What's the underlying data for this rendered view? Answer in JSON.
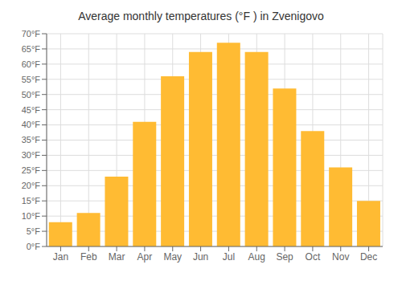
{
  "chart_data": {
    "type": "bar",
    "title": "Average monthly temperatures (°F ) in Zvenigovo",
    "categories": [
      "Jan",
      "Feb",
      "Mar",
      "Apr",
      "May",
      "Jun",
      "Jul",
      "Aug",
      "Sep",
      "Oct",
      "Nov",
      "Dec"
    ],
    "values": [
      8,
      11,
      23,
      41,
      56,
      64,
      67,
      64,
      52,
      38,
      26,
      15
    ],
    "color": "#FFBB33",
    "ylim": [
      0,
      70
    ],
    "yticks": [
      {
        "value": 0,
        "label": "0°F"
      },
      {
        "value": 5,
        "label": "5°F"
      },
      {
        "value": 10,
        "label": "10°F"
      },
      {
        "value": 15,
        "label": "15°F"
      },
      {
        "value": 20,
        "label": "20°F"
      },
      {
        "value": 25,
        "label": "25°F"
      },
      {
        "value": 30,
        "label": "30°F"
      },
      {
        "value": 35,
        "label": "35°F"
      },
      {
        "value": 40,
        "label": "40°F"
      },
      {
        "value": 45,
        "label": "45°F"
      },
      {
        "value": 50,
        "label": "50°F"
      },
      {
        "value": 55,
        "label": "55°F"
      },
      {
        "value": 60,
        "label": "60°F"
      },
      {
        "value": 65,
        "label": "65°F"
      },
      {
        "value": 70,
        "label": "70°F"
      }
    ],
    "grid": true
  }
}
